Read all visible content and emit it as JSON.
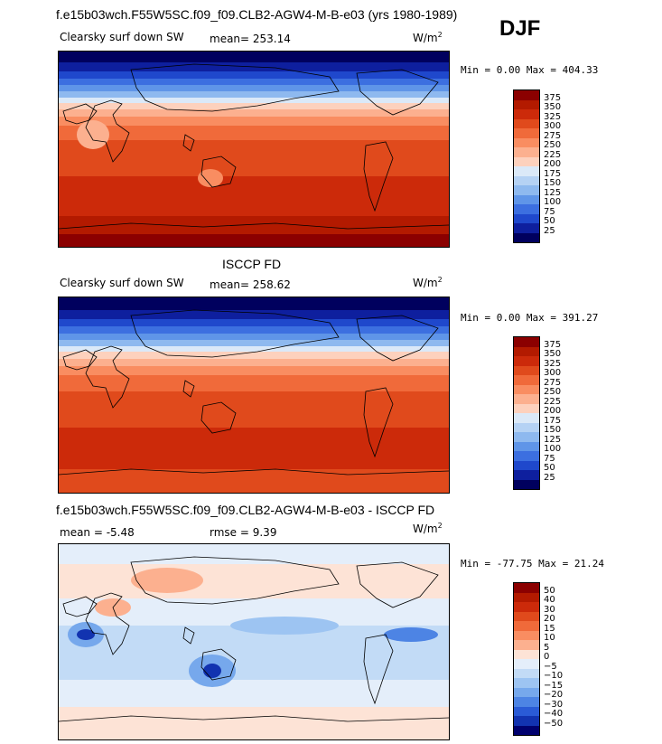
{
  "season": "DJF",
  "panels": [
    {
      "title": "f.e15b03wch.F55W5SC.f09_f09.CLB2-AGW4-M-B-e03 (yrs 1980-1989)",
      "field": "Clearsky surf down SW",
      "stat1": "mean=  253.14",
      "stat2": "",
      "units": "W/m",
      "units_sup": "2",
      "minmax": "Min =    0.00 Max = 404.33",
      "colorbar": {
        "levels": [
          "375",
          "350",
          "325",
          "300",
          "275",
          "250",
          "225",
          "200",
          "175",
          "150",
          "125",
          "100",
          "75",
          "50",
          "25"
        ],
        "colors": [
          "#8b0000",
          "#b31a00",
          "#cc2a0a",
          "#e04a1c",
          "#f06a3a",
          "#f98d61",
          "#fcb08f",
          "#fdd1bd",
          "#dbe9f8",
          "#b5d2f4",
          "#8eb9ef",
          "#5f95e8",
          "#3c6fe0",
          "#1f48cc",
          "#0e1f9e",
          "#00005e"
        ]
      }
    },
    {
      "title": "ISCCP FD",
      "field": "Clearsky surf down SW",
      "stat1": "mean=  258.62",
      "stat2": "",
      "units": "W/m",
      "units_sup": "2",
      "minmax": "Min =    0.00 Max = 391.27",
      "colorbar": {
        "levels": [
          "375",
          "350",
          "325",
          "300",
          "275",
          "250",
          "225",
          "200",
          "175",
          "150",
          "125",
          "100",
          "75",
          "50",
          "25"
        ],
        "colors": [
          "#8b0000",
          "#b31a00",
          "#cc2a0a",
          "#e04a1c",
          "#f06a3a",
          "#f98d61",
          "#fcb08f",
          "#fdd1bd",
          "#dbe9f8",
          "#b5d2f4",
          "#8eb9ef",
          "#5f95e8",
          "#3c6fe0",
          "#1f48cc",
          "#0e1f9e",
          "#00005e"
        ]
      }
    },
    {
      "title": "f.e15b03wch.F55W5SC.f09_f09.CLB2-AGW4-M-B-e03 - ISCCP FD",
      "field": "",
      "stat1": "mean =   -5.48",
      "stat2": "rmse =    9.39",
      "units": "W/m",
      "units_sup": "2",
      "minmax": "Min = -77.75 Max =  21.24",
      "colorbar": {
        "levels": [
          "50",
          "40",
          "30",
          "20",
          "15",
          "10",
          "5",
          "0",
          "−5",
          "−10",
          "−15",
          "−20",
          "−30",
          "−40",
          "−50"
        ],
        "colors": [
          "#8b0000",
          "#b31a00",
          "#cc2a0a",
          "#e04a1c",
          "#f06a3a",
          "#f98d61",
          "#fcb08f",
          "#fde3d6",
          "#e4eefa",
          "#c2dbf6",
          "#9dc4f2",
          "#76a8ec",
          "#4d84e4",
          "#2a5bd6",
          "#1233b0",
          "#00006e"
        ]
      }
    }
  ]
}
